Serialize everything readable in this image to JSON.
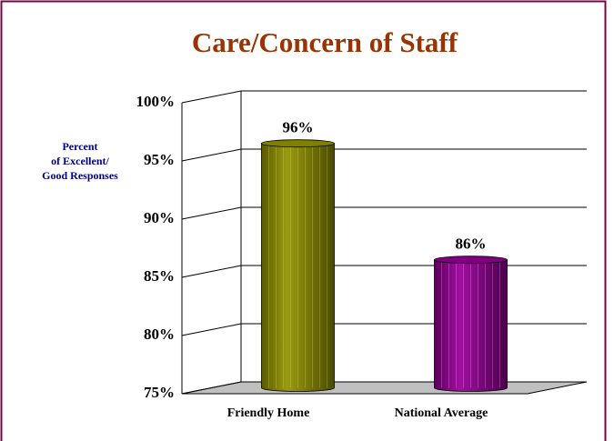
{
  "chart_data": {
    "type": "bar",
    "title": "Care/Concern of Staff",
    "ylabel": [
      "Percent",
      "of Excellent/",
      "Good Responses"
    ],
    "categories": [
      "Friendly Home",
      "National Average"
    ],
    "values": [
      96,
      86
    ],
    "value_labels": [
      "96%",
      "86%"
    ],
    "colors": [
      "#808000",
      "#800080"
    ],
    "ylim": [
      75,
      100
    ],
    "yticks": [
      {
        "value": 75,
        "label": "75%"
      },
      {
        "value": 80,
        "label": "80%"
      },
      {
        "value": 85,
        "label": "85%"
      },
      {
        "value": 90,
        "label": "90%"
      },
      {
        "value": 95,
        "label": "95%"
      },
      {
        "value": 100,
        "label": "100%"
      }
    ],
    "grid": true
  }
}
